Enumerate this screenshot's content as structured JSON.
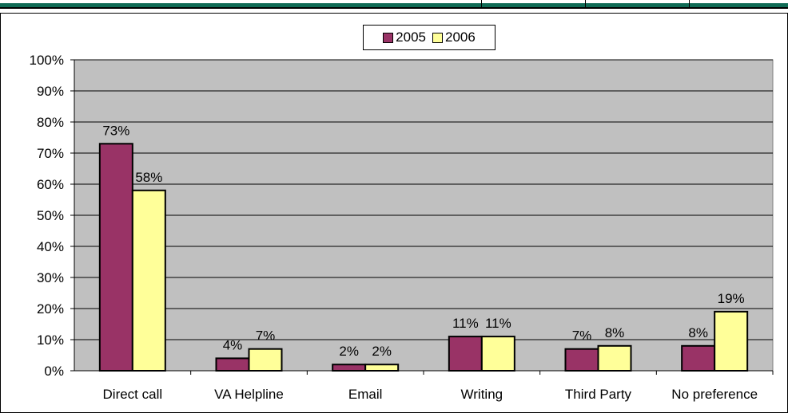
{
  "chart_data": {
    "type": "bar",
    "categories": [
      "Direct call",
      "VA Helpline",
      "Email",
      "Writing",
      "Third Party",
      "No preference"
    ],
    "series": [
      {
        "name": "2005",
        "values": [
          73,
          4,
          2,
          11,
          7,
          8
        ],
        "labels": [
          "73%",
          "4%",
          "2%",
          "11%",
          "7%",
          "8%"
        ],
        "color": "#993366"
      },
      {
        "name": "2006",
        "values": [
          58,
          7,
          2,
          11,
          8,
          19
        ],
        "labels": [
          "58%",
          "7%",
          "2%",
          "11%",
          "8%",
          "19%"
        ],
        "color": "#ffff99"
      }
    ],
    "y_ticks": [
      "0%",
      "10%",
      "20%",
      "30%",
      "40%",
      "50%",
      "60%",
      "70%",
      "80%",
      "90%",
      "100%"
    ],
    "ylim": [
      0,
      100
    ],
    "plot_background": "#c0c0c0",
    "grid": true,
    "legend_position": "top"
  }
}
